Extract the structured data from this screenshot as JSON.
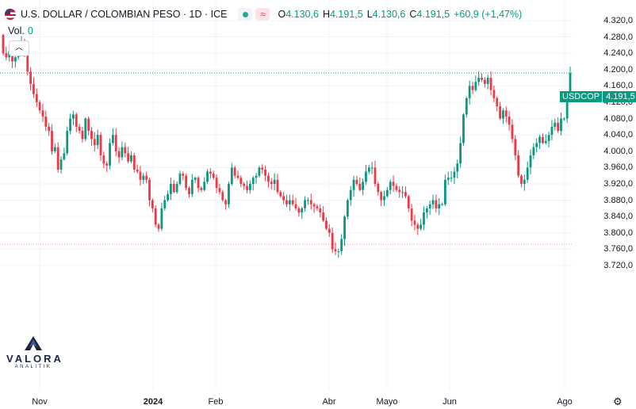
{
  "header": {
    "title": "U.S. DOLLAR / COLOMBIAN PESO · 1D · ICE",
    "ohlc": [
      {
        "k": "O",
        "v": "4.130,6"
      },
      {
        "k": "H",
        "v": "4.191,5"
      },
      {
        "k": "L",
        "v": "4.130,6"
      },
      {
        "k": "C",
        "v": "4.191,5"
      },
      {
        "k": "",
        "v": "+60,9 (+1,47%)"
      }
    ]
  },
  "volume": {
    "label": "Vol.",
    "value": "0"
  },
  "price_label": {
    "symbol": "USDCOP",
    "value": "4.191,5"
  },
  "logo": {
    "name": "VALORA",
    "sub": "ANALITIK"
  },
  "colors": {
    "up": "#089981",
    "down": "#f23645",
    "grid": "#f0f3fa",
    "text": "#131722"
  },
  "chart_data": {
    "type": "candlestick",
    "y_ticks": [
      "4.320,0",
      "4.280,0",
      "4.240,0",
      "4.200,0",
      "4.160,0",
      "4.120,0",
      "4.080,0",
      "4.040,0",
      "4.000,0",
      "3.960,0",
      "3.920,0",
      "3.880,0",
      "3.840,0",
      "3.800,0",
      "3.760,0",
      "3.720,0"
    ],
    "x_ticks": [
      "Nov",
      "2024",
      "Feb",
      "Abr",
      "Mayo",
      "Jun",
      "Ago"
    ],
    "ylim": [
      3700,
      4330
    ],
    "last_close": 4191.5,
    "support_level": 3772,
    "closes": [
      4240,
      4230,
      4245,
      4220,
      4230,
      4260,
      4270,
      4245,
      4195,
      4165,
      4140,
      4120,
      4100,
      4085,
      4060,
      4050,
      4000,
      4010,
      3955,
      3980,
      3995,
      4050,
      4080,
      4090,
      4060,
      4050,
      4030,
      4080,
      4050,
      4030,
      4015,
      4040,
      3990,
      3970,
      3965,
      4020,
      4040,
      4000,
      3985,
      4010,
      3995,
      3975,
      3990,
      3955,
      3950,
      3930,
      3940,
      3930,
      3880,
      3860,
      3820,
      3810,
      3860,
      3880,
      3895,
      3920,
      3900,
      3920,
      3945,
      3940,
      3910,
      3895,
      3930,
      3935,
      3910,
      3905,
      3925,
      3950,
      3945,
      3935,
      3910,
      3900,
      3880,
      3870,
      3920,
      3960,
      3940,
      3935,
      3920,
      3915,
      3905,
      3920,
      3935,
      3940,
      3960,
      3955,
      3940,
      3925,
      3920,
      3930,
      3900,
      3890,
      3880,
      3870,
      3880,
      3870,
      3860,
      3850,
      3860,
      3880,
      3880,
      3870,
      3865,
      3860,
      3850,
      3830,
      3810,
      3800,
      3760,
      3755,
      3755,
      3785,
      3840,
      3880,
      3905,
      3930,
      3920,
      3905,
      3925,
      3950,
      3960,
      3960,
      3920,
      3900,
      3880,
      3890,
      3905,
      3925,
      3915,
      3905,
      3900,
      3900,
      3890,
      3860,
      3830,
      3820,
      3810,
      3820,
      3850,
      3860,
      3870,
      3880,
      3860,
      3870,
      3870,
      3930,
      3935,
      3935,
      3950,
      3970,
      4020,
      4090,
      4130,
      4160,
      4150,
      4170,
      4180,
      4175,
      4165,
      4180,
      4150,
      4130,
      4110,
      4080,
      4100,
      4085,
      4065,
      4030,
      3990,
      3940,
      3920,
      3930,
      3960,
      3990,
      4010,
      4020,
      4035,
      4020,
      4025,
      4040,
      4060,
      4070,
      4050,
      4080,
      4080,
      4130,
      4191.5
    ]
  }
}
